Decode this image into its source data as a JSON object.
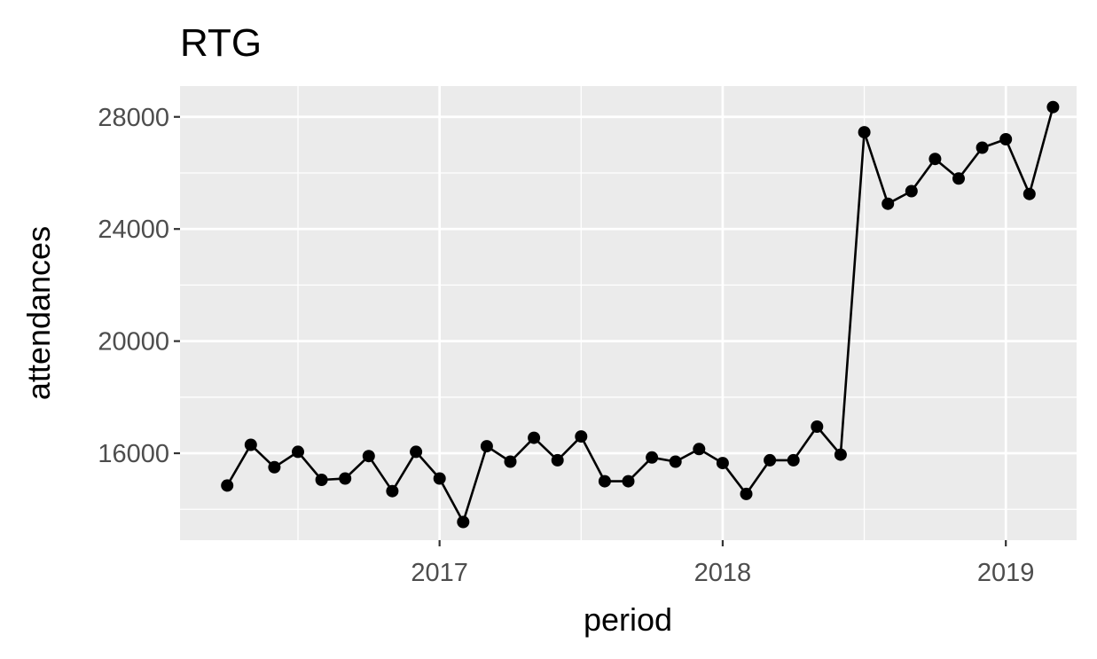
{
  "chart_data": {
    "type": "line",
    "title": "RTG",
    "xlabel": "period",
    "ylabel": "attendances",
    "x_ticks": [
      {
        "label": "2017",
        "value": "2017-01"
      },
      {
        "label": "2018",
        "value": "2018-01"
      },
      {
        "label": "2019",
        "value": "2019-01"
      }
    ],
    "x_minor_ticks": [
      "2016-07",
      "2017-07",
      "2018-07"
    ],
    "y_ticks": [
      16000,
      20000,
      24000,
      28000
    ],
    "y_minor_ticks": [
      14000,
      18000,
      22000,
      26000
    ],
    "xlim": [
      "2016-02",
      "2019-04"
    ],
    "ylim": [
      12900,
      29100
    ],
    "grid": true,
    "legend": "none",
    "colors": {
      "panel": "#ebebeb",
      "grid": "#ffffff",
      "line": "#000000",
      "point": "#000000"
    },
    "series": [
      {
        "x": [
          "2016-04",
          "2016-05",
          "2016-06",
          "2016-07",
          "2016-08",
          "2016-09",
          "2016-10",
          "2016-11",
          "2016-12",
          "2017-01",
          "2017-02",
          "2017-03",
          "2017-04",
          "2017-05",
          "2017-06",
          "2017-07",
          "2017-08",
          "2017-09",
          "2017-10",
          "2017-11",
          "2017-12",
          "2018-01",
          "2018-02",
          "2018-03",
          "2018-04",
          "2018-05",
          "2018-06",
          "2018-07",
          "2018-08",
          "2018-09",
          "2018-10",
          "2018-11",
          "2018-12",
          "2019-01",
          "2019-02",
          "2019-03"
        ],
        "values": [
          14850,
          16300,
          15500,
          16050,
          15050,
          15100,
          15900,
          14650,
          16050,
          15100,
          13550,
          16250,
          15700,
          16550,
          15750,
          16600,
          15000,
          15000,
          15850,
          15700,
          16150,
          15650,
          14550,
          15750,
          15750,
          16950,
          15950,
          27450,
          24900,
          25350,
          26500,
          25800,
          26900,
          27200,
          25250,
          28350
        ]
      }
    ]
  }
}
